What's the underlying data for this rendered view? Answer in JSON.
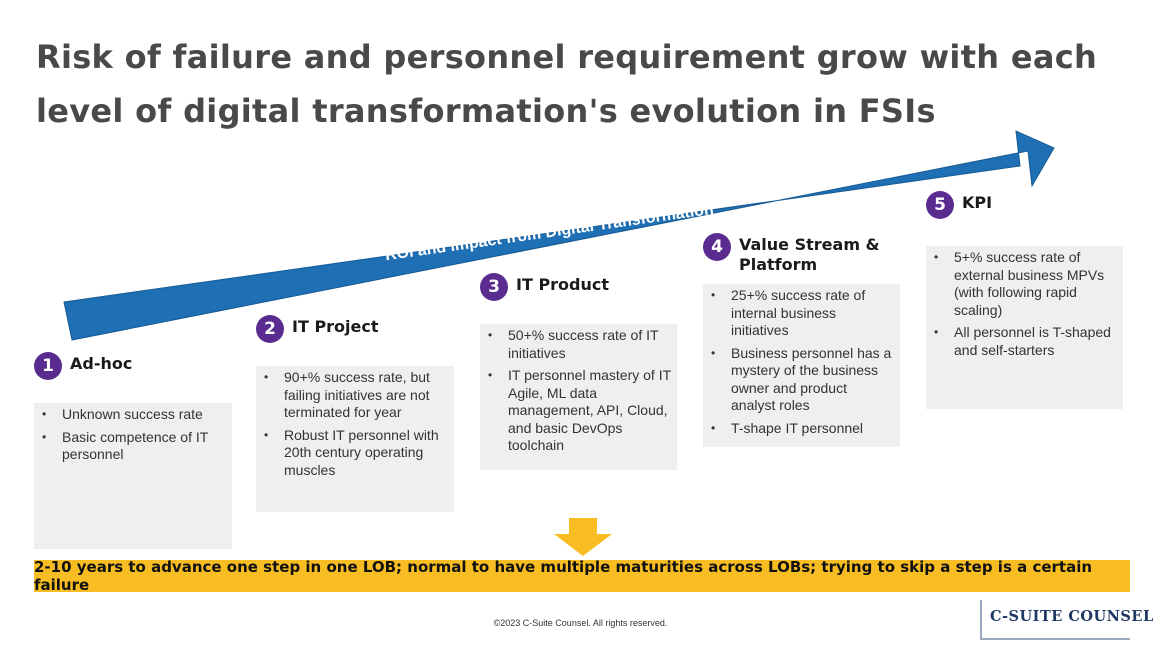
{
  "title": "Risk of failure and personnel requirement grow with each level of digital transformation's evolution in FSIs",
  "arrow_label": "ROI and Impact from Digital Transformation",
  "stages": [
    {
      "num": "1",
      "title": "Ad-hoc",
      "bullets": [
        "Unknown success rate",
        "Basic competence of IT personnel"
      ]
    },
    {
      "num": "2",
      "title": "IT Project",
      "bullets": [
        "90+% success rate, but failing initiatives are not terminated for year",
        "Robust IT personnel with 20th century operating muscles"
      ]
    },
    {
      "num": "3",
      "title": "IT Product",
      "bullets": [
        "50+% success rate of IT initiatives",
        "IT personnel mastery of IT Agile, ML data management, API, Cloud, and basic DevOps toolchain"
      ]
    },
    {
      "num": "4",
      "title": "Value Stream & Platform",
      "bullets": [
        "25+% success rate of internal business initiatives",
        "Business personnel has a mystery of the business owner and product analyst roles",
        "T-shape IT personnel"
      ]
    },
    {
      "num": "5",
      "title": "KPI",
      "bullets": [
        "5+% success rate of external business MPVs (with following rapid scaling)",
        "All personnel is T-shaped and self-starters"
      ]
    }
  ],
  "banner": "2-10 years to advance one step in one LOB; normal to have multiple maturities across LOBs; trying to skip a step is a certain failure",
  "footer": "©2023 C-Suite Counsel.  All rights reserved.",
  "logo_text": "C-SUITE COUNSEL",
  "colors": {
    "arrow": "#1f6fb4",
    "badge": "#5b2c8f",
    "banner": "#f7bd22",
    "box": "#efefef"
  }
}
